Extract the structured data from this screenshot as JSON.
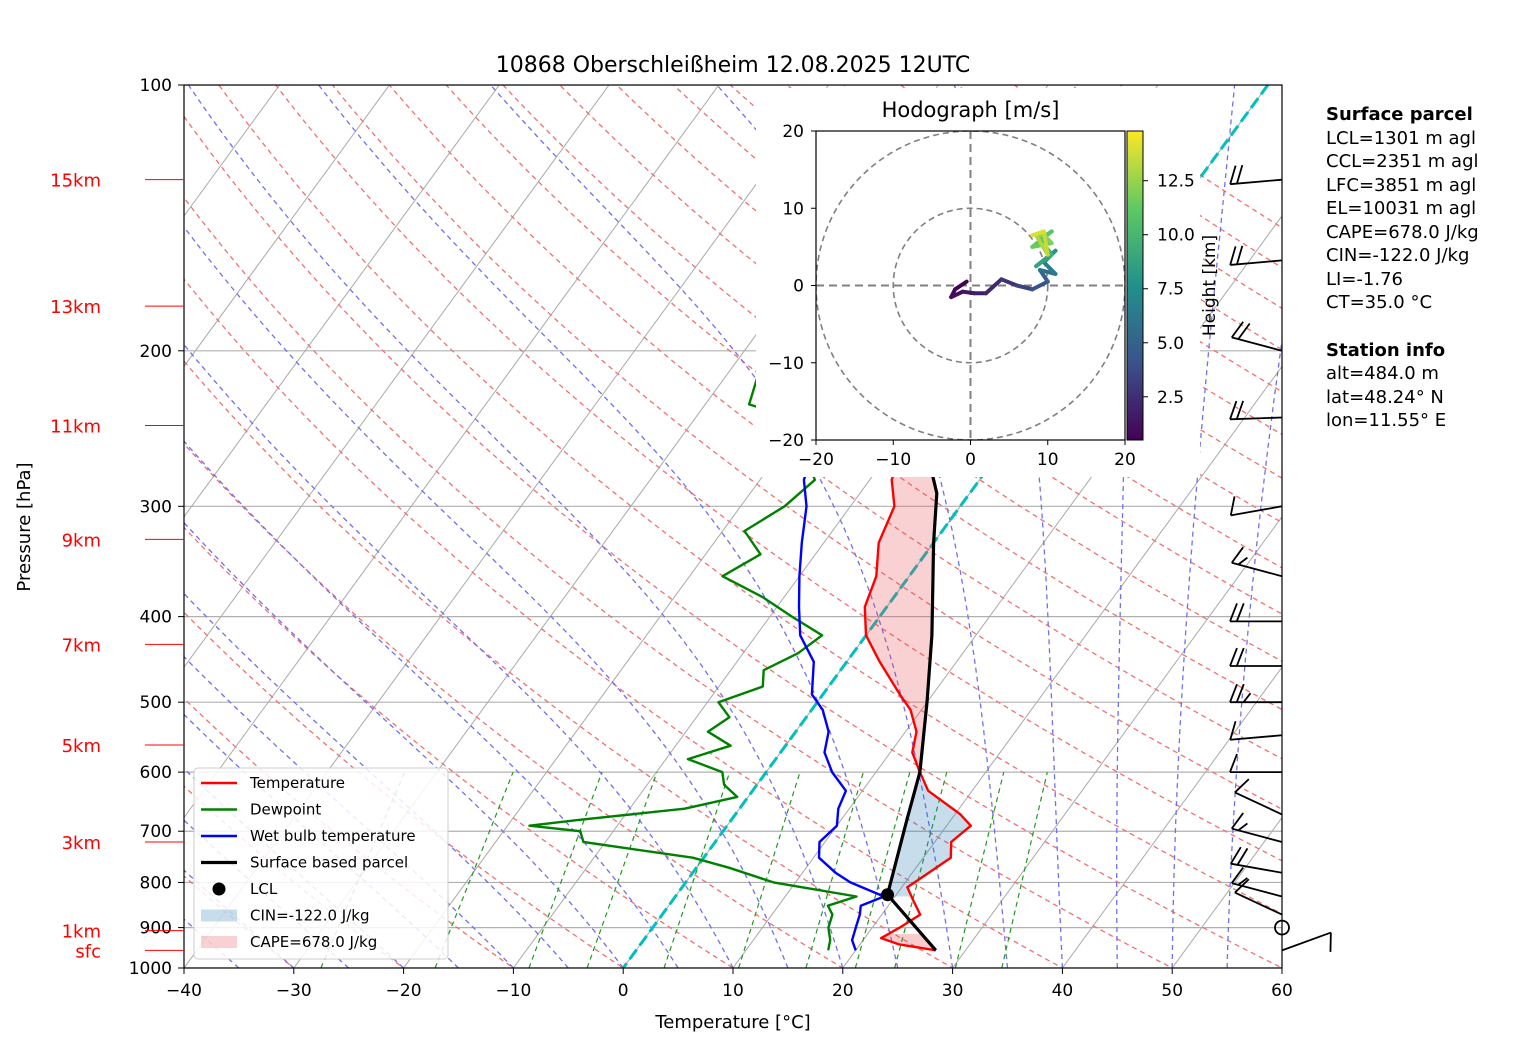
{
  "chart_data": {
    "type": "line",
    "title": "10868 Oberschleißheim 12.08.2025 12UTC",
    "xlabel": "Temperature [°C]",
    "ylabel": "Pressure [hPa]",
    "xlim": [
      -40,
      60
    ],
    "ylim": [
      1000,
      100
    ],
    "y_scale": "log",
    "grid": true,
    "x_ticks": [
      "−40",
      "−30",
      "−20",
      "−10",
      "0",
      "10",
      "20",
      "30",
      "40",
      "50",
      "60"
    ],
    "y_ticks": [
      "100",
      "200",
      "300",
      "400",
      "500",
      "600",
      "700",
      "800",
      "900",
      "1000"
    ],
    "height_labels": [
      {
        "label": "sfc",
        "p": 955
      },
      {
        "label": "1km",
        "p": 907
      },
      {
        "label": "3km",
        "p": 720
      },
      {
        "label": "5km",
        "p": 559
      },
      {
        "label": "7km",
        "p": 430
      },
      {
        "label": "9km",
        "p": 327
      },
      {
        "label": "11km",
        "p": 243
      },
      {
        "label": "13km",
        "p": 178
      },
      {
        "label": "15km",
        "p": 128
      }
    ],
    "series": [
      {
        "name": "Temperature",
        "color": "#ff0000",
        "points": [
          [
            27.3,
            955
          ],
          [
            23.5,
            940
          ],
          [
            21.5,
            925
          ],
          [
            22.5,
            900
          ],
          [
            23.5,
            870
          ],
          [
            22,
            840
          ],
          [
            20.5,
            810
          ],
          [
            21.5,
            780
          ],
          [
            22.5,
            750
          ],
          [
            21.5,
            720
          ],
          [
            22.2,
            690
          ],
          [
            20.5,
            670
          ],
          [
            16,
            630
          ],
          [
            14,
            600
          ],
          [
            12,
            570
          ],
          [
            11,
            540
          ],
          [
            9,
            510
          ],
          [
            7,
            490
          ],
          [
            3,
            450
          ],
          [
            0,
            420
          ],
          [
            -2,
            390
          ],
          [
            -3,
            360
          ],
          [
            -5,
            330
          ],
          [
            -6,
            300
          ],
          [
            -8,
            280
          ],
          [
            -9,
            260
          ],
          [
            -8,
            240
          ],
          [
            -7,
            220
          ],
          [
            -6,
            200
          ],
          [
            -5,
            180
          ],
          [
            -4,
            160
          ],
          [
            -3,
            140
          ],
          [
            -2,
            128
          ]
        ]
      },
      {
        "name": "Dewpoint",
        "color": "#008000",
        "points": [
          [
            17.5,
            955
          ],
          [
            17,
            930
          ],
          [
            16,
            900
          ],
          [
            15.5,
            870
          ],
          [
            14.5,
            850
          ],
          [
            16.5,
            830
          ],
          [
            8,
            800
          ],
          [
            3,
            770
          ],
          [
            -1,
            750
          ],
          [
            -12,
            720
          ],
          [
            -13,
            700
          ],
          [
            -18,
            690
          ],
          [
            -14,
            680
          ],
          [
            -5,
            660
          ],
          [
            -1,
            640
          ],
          [
            -3,
            620
          ],
          [
            -4,
            600
          ],
          [
            -8,
            580
          ],
          [
            -5,
            560
          ],
          [
            -8,
            540
          ],
          [
            -7,
            520
          ],
          [
            -9,
            500
          ],
          [
            -6,
            480
          ],
          [
            -7,
            460
          ],
          [
            -5,
            440
          ],
          [
            -4,
            420
          ],
          [
            -8,
            400
          ],
          [
            -12,
            380
          ],
          [
            -17,
            360
          ],
          [
            -15,
            340
          ],
          [
            -18,
            320
          ],
          [
            -16,
            300
          ],
          [
            -15,
            280
          ],
          [
            -18,
            260
          ],
          [
            -20,
            240
          ],
          [
            -26,
            230
          ],
          [
            -27,
            215
          ],
          [
            -28,
            200
          ],
          [
            -30,
            185
          ],
          [
            -30,
            170
          ],
          [
            -32,
            155
          ],
          [
            -33,
            140
          ],
          [
            -35,
            128
          ]
        ]
      },
      {
        "name": "Wet bulb temperature",
        "color": "#0000ff",
        "points": [
          [
            20,
            955
          ],
          [
            19,
            930
          ],
          [
            18.5,
            900
          ],
          [
            18,
            870
          ],
          [
            17.5,
            850
          ],
          [
            19,
            830
          ],
          [
            15,
            800
          ],
          [
            13,
            780
          ],
          [
            10.5,
            750
          ],
          [
            9.5,
            720
          ],
          [
            10,
            690
          ],
          [
            9,
            660
          ],
          [
            8.5,
            630
          ],
          [
            6,
            600
          ],
          [
            4,
            570
          ],
          [
            3,
            540
          ],
          [
            1,
            510
          ],
          [
            -1,
            490
          ],
          [
            -3,
            450
          ],
          [
            -6,
            420
          ],
          [
            -8,
            390
          ],
          [
            -10,
            360
          ],
          [
            -12,
            330
          ],
          [
            -14,
            300
          ],
          [
            -16,
            280
          ],
          [
            -17,
            260
          ],
          [
            -16,
            240
          ],
          [
            -15,
            220
          ],
          [
            -14,
            200
          ],
          [
            -13,
            180
          ],
          [
            -12,
            160
          ],
          [
            -11,
            140
          ],
          [
            -10,
            128
          ]
        ]
      },
      {
        "name": "Surface based parcel",
        "color": "#000000",
        "points": [
          [
            27.3,
            955
          ],
          [
            19.2,
            826
          ],
          [
            16,
            680
          ],
          [
            14,
            600
          ],
          [
            10,
            500
          ],
          [
            6,
            420
          ],
          [
            0,
            330
          ],
          [
            -3,
            290
          ],
          [
            -8,
            250
          ],
          [
            -13,
            210
          ],
          [
            -18,
            180
          ],
          [
            -23,
            155
          ],
          [
            -28,
            128
          ]
        ]
      }
    ],
    "lcl": {
      "name": "LCL",
      "t": 19.2,
      "p": 826
    },
    "cin": {
      "label": "CIN=-122.0 J/kg",
      "value": -122.0,
      "unit": "J/kg",
      "color": "#1f77b4"
    },
    "cape": {
      "label": "CAPE=678.0 J/kg",
      "value": 678.0,
      "unit": "J/kg",
      "color": "#e6474a"
    },
    "hodograph": {
      "title": "Hodograph [m/s]",
      "xlim": [
        -20,
        20
      ],
      "ylim": [
        -20,
        20
      ],
      "x_ticks": [
        "−20",
        "−10",
        "0",
        "10",
        "20"
      ],
      "y_ticks": [
        "20",
        "10",
        "0",
        "−10",
        "−20"
      ],
      "colorbar_label": "Height [km]",
      "colorbar_ticks": [
        "2.5",
        "5.0",
        "7.5",
        "10.0",
        "12.5"
      ],
      "colorbar_values": [
        2.5,
        5.0,
        7.5,
        10.0,
        12.5
      ],
      "colorbar_range": [
        0.5,
        14.8
      ],
      "points": [
        [
          -0.5,
          0.5,
          0.5
        ],
        [
          -2,
          -0.5,
          0.8
        ],
        [
          -2.5,
          -1.5,
          1.0
        ],
        [
          -1,
          -0.8,
          1.4
        ],
        [
          0.5,
          -1,
          1.8
        ],
        [
          2,
          -1,
          2.2
        ],
        [
          4,
          0.8,
          2.8
        ],
        [
          6,
          0,
          3.4
        ],
        [
          8,
          -0.5,
          4.2
        ],
        [
          10,
          0.5,
          5.0
        ],
        [
          9,
          2,
          5.8
        ],
        [
          11,
          1.5,
          6.5
        ],
        [
          9.5,
          3,
          7.2
        ],
        [
          11,
          4.5,
          8.0
        ],
        [
          8.5,
          2.5,
          8.8
        ],
        [
          10.5,
          4,
          9.5
        ],
        [
          9,
          6,
          10.3
        ],
        [
          10.5,
          7,
          11.0
        ],
        [
          8,
          5,
          11.5
        ],
        [
          10.5,
          5.5,
          12.0
        ],
        [
          9.5,
          6.5,
          12.5
        ],
        [
          8.5,
          6.5,
          13.0
        ],
        [
          10,
          4,
          13.5
        ],
        [
          9.5,
          7,
          14.0
        ],
        [
          8,
          6.5,
          14.5
        ]
      ]
    },
    "wind_barbs": [
      {
        "p": 128,
        "speed_kt": 20,
        "dir_deg": 265
      },
      {
        "p": 158,
        "speed_kt": 20,
        "dir_deg": 265
      },
      {
        "p": 200,
        "speed_kt": 20,
        "dir_deg": 285
      },
      {
        "p": 238,
        "speed_kt": 20,
        "dir_deg": 268
      },
      {
        "p": 300,
        "speed_kt": 10,
        "dir_deg": 260
      },
      {
        "p": 360,
        "speed_kt": 15,
        "dir_deg": 285
      },
      {
        "p": 405,
        "speed_kt": 20,
        "dir_deg": 270
      },
      {
        "p": 455,
        "speed_kt": 20,
        "dir_deg": 270
      },
      {
        "p": 500,
        "speed_kt": 25,
        "dir_deg": 270
      },
      {
        "p": 545,
        "speed_kt": 10,
        "dir_deg": 265
      },
      {
        "p": 600,
        "speed_kt": 10,
        "dir_deg": 270
      },
      {
        "p": 670,
        "speed_kt": 10,
        "dir_deg": 295
      },
      {
        "p": 720,
        "speed_kt": 15,
        "dir_deg": 285
      },
      {
        "p": 780,
        "speed_kt": 20,
        "dir_deg": 280
      },
      {
        "p": 830,
        "speed_kt": 15,
        "dir_deg": 285
      },
      {
        "p": 870,
        "speed_kt": 10,
        "dir_deg": 295
      },
      {
        "p": 955,
        "speed_kt": 10,
        "dir_deg": 70
      }
    ],
    "calm_marker_p": 900,
    "legend": {
      "location": "lower-left",
      "entries": [
        "Temperature",
        "Dewpoint",
        "Wet bulb temperature",
        "Surface based parcel",
        "LCL",
        "CIN=-122.0 J/kg",
        "CAPE=678.0 J/kg"
      ]
    }
  },
  "info_panel": {
    "surface_header": "Surface parcel",
    "surface_lines": [
      "LCL=1301 m agl",
      "CCL=2351 m agl",
      "LFC=3851 m agl",
      "EL=10031 m agl",
      "CAPE=678.0 J/kg",
      "CIN=-122.0 J/kg",
      "LI=-1.76",
      "CT=35.0 °C"
    ],
    "station_header": "Station info",
    "station_lines": [
      "alt=484.0 m",
      "lat=48.24° N",
      "lon=11.55° E"
    ]
  }
}
